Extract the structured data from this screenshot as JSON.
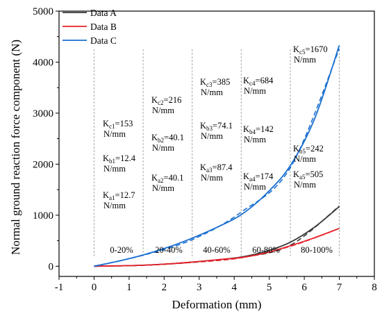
{
  "chart_data": {
    "type": "line",
    "xlabel": "Deformation (mm)",
    "ylabel": "Normal ground reaction force component (N)",
    "xlim": [
      -1,
      8
    ],
    "ylim": [
      -200,
      5000
    ],
    "xticks": [
      -1,
      0,
      1,
      2,
      3,
      4,
      5,
      6,
      7,
      8
    ],
    "yticks": [
      0,
      1000,
      2000,
      3000,
      4000,
      5000
    ],
    "grid": false,
    "legend": "top-left",
    "colors": {
      "Data A": "#3a3a3a",
      "Data B": "#e8202a",
      "Data C": "#1a6fd0"
    },
    "series": [
      {
        "name": "Data A",
        "x": [
          0,
          0.7,
          1.4,
          2.1,
          2.8,
          3.5,
          4.2,
          4.9,
          5.6,
          6.3,
          7.0
        ],
        "y": [
          0,
          8,
          20,
          45,
          80,
          125,
          180,
          290,
          470,
          770,
          1170
        ]
      },
      {
        "name": "Data B",
        "x": [
          0,
          0.7,
          1.4,
          2.1,
          2.8,
          3.5,
          4.2,
          4.9,
          5.6,
          6.3,
          7.0
        ],
        "y": [
          0,
          8,
          20,
          45,
          80,
          125,
          170,
          260,
          400,
          560,
          740
        ]
      },
      {
        "name": "Data C",
        "x": [
          0,
          0.7,
          1.4,
          2.1,
          2.8,
          3.5,
          4.2,
          4.9,
          5.6,
          6.3,
          7.0
        ],
        "y": [
          0,
          100,
          220,
          370,
          550,
          760,
          1010,
          1410,
          1970,
          2900,
          4330
        ]
      }
    ],
    "fits": [
      {
        "name": "Data A",
        "x": [
          0,
          1.4,
          2.8,
          4.2,
          5.6,
          7.0
        ],
        "y": [
          0,
          18,
          75,
          170,
          410,
          1180
        ]
      },
      {
        "name": "Data B",
        "x": [
          0,
          1.4,
          2.8,
          4.2,
          5.6,
          7.0
        ],
        "y": [
          0,
          18,
          75,
          165,
          390,
          740
        ]
      },
      {
        "name": "Data C",
        "x": [
          0,
          1.4,
          2.8,
          4.2,
          5.6,
          7.0
        ],
        "y": [
          0,
          215,
          520,
          1060,
          1930,
          4260
        ]
      }
    ],
    "separators": [
      0,
      1.4,
      2.8,
      4.2,
      5.6,
      7.0
    ],
    "range_labels": [
      "0-20%",
      "20-40%",
      "40-60%",
      "60-80%",
      "80-100%"
    ],
    "annotations": [
      {
        "range": "0-20%",
        "c": {
          "sub": "c1",
          "value": "=153"
        },
        "b": {
          "sub": "b1",
          "value": "=12.4"
        },
        "a": {
          "sub": "a1",
          "value": "=12.7"
        }
      },
      {
        "range": "20-40%",
        "c": {
          "sub": "c2",
          "value": "=216"
        },
        "b": {
          "sub": "b2",
          "value": "=40.1"
        },
        "a": {
          "sub": "a2",
          "value": "=40.1"
        }
      },
      {
        "range": "40-60%",
        "c": {
          "sub": "c3",
          "value": "=385"
        },
        "b": {
          "sub": "b3",
          "value": "=74.1"
        },
        "a": {
          "sub": "a3",
          "value": "=87.4"
        }
      },
      {
        "range": "60-80%",
        "c": {
          "sub": "c4",
          "value": "=684"
        },
        "b": {
          "sub": "b4",
          "value": "=142"
        },
        "a": {
          "sub": "a4",
          "value": "=174"
        }
      },
      {
        "range": "80-100%",
        "c": {
          "sub": "c5",
          "value": "=1670"
        },
        "b": {
          "sub": "b5",
          "value": "=242"
        },
        "a": {
          "sub": "a5",
          "value": "=505"
        }
      }
    ],
    "annotation_symbol": "K",
    "annotation_unit": "N/mm"
  }
}
